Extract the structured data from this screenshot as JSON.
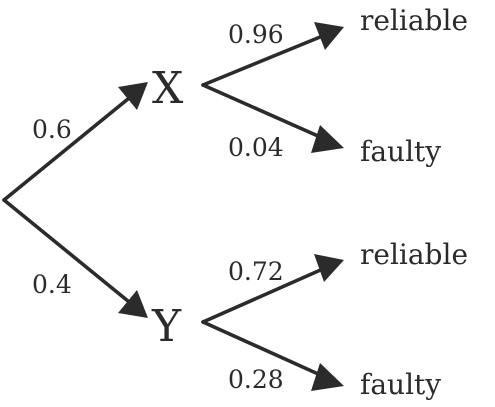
{
  "tree": {
    "first_stage": [
      {
        "node": "X",
        "probability": "0.6"
      },
      {
        "node": "Y",
        "probability": "0.4"
      }
    ],
    "second_stage": {
      "X": [
        {
          "outcome": "reliable",
          "probability": "0.96"
        },
        {
          "outcome": "faulty",
          "probability": "0.04"
        }
      ],
      "Y": [
        {
          "outcome": "reliable",
          "probability": "0.72"
        },
        {
          "outcome": "faulty",
          "probability": "0.28"
        }
      ]
    }
  },
  "colors": {
    "ink": "#2b2b2b",
    "background": "#ffffff"
  }
}
